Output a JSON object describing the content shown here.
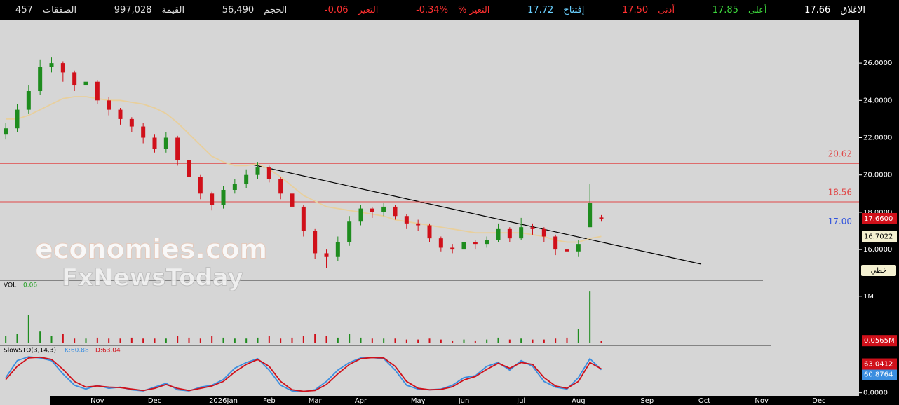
{
  "header": {
    "stats": [
      {
        "label": "الاغلاق",
        "value": "17.66"
      },
      {
        "label": "أعلى",
        "value": "17.85"
      },
      {
        "label": "أدنى",
        "value": "17.50"
      },
      {
        "label": "إفتتاح",
        "value": "17.72"
      },
      {
        "label": "التغير %",
        "value": "-0.34%"
      },
      {
        "label": "التغير",
        "value": "-0.06"
      },
      {
        "label": "الحجم",
        "value": "56,490"
      },
      {
        "label": "القيمة",
        "value": "997,028"
      },
      {
        "label": "الصفقات",
        "value": "457"
      }
    ]
  },
  "watermark": {
    "line1": "economies.com",
    "line2": "FxNewsToday"
  },
  "ui": {
    "mode_button": "خطي"
  },
  "chart_data": [
    {
      "type": "candlestick",
      "up_color": "#1e8c1e",
      "down_color": "#d0101a",
      "categories": [
        null,
        null,
        null,
        null,
        null,
        null,
        null,
        null,
        "Nov",
        null,
        null,
        null,
        null,
        "Dec",
        null,
        null,
        null,
        null,
        null,
        "2026Jan",
        null,
        null,
        null,
        "Feb",
        null,
        null,
        null,
        "Mar",
        null,
        null,
        null,
        "Apr",
        null,
        null,
        null,
        null,
        "May",
        null,
        null,
        null,
        "Jun",
        null,
        null,
        null,
        null,
        "Jul",
        null,
        null,
        null,
        null,
        "Aug",
        null,
        null,
        null,
        null,
        null,
        "Sep",
        null,
        null,
        null,
        null,
        "Oct",
        null,
        null,
        null,
        null,
        "Nov",
        null,
        null,
        null,
        null,
        "Dec",
        null,
        null,
        null
      ],
      "open": [
        22.2,
        22.5,
        23.5,
        24.5,
        25.8,
        26.0,
        25.5,
        24.8,
        25.0,
        24.0,
        23.5,
        23.0,
        22.6,
        22.0,
        21.4,
        22.0,
        20.8,
        19.9,
        19.0,
        18.4,
        19.2,
        19.5,
        20.0,
        20.4,
        19.8,
        19.0,
        18.3,
        17.0,
        15.8,
        15.6,
        16.4,
        17.5,
        18.2,
        18.0,
        18.3,
        17.8,
        17.4,
        17.3,
        16.6,
        16.1,
        16.0,
        16.4,
        16.3,
        16.5,
        17.1,
        16.6,
        17.2,
        17.1,
        16.7,
        16.0,
        15.9,
        17.2,
        17.72,
        null,
        null,
        null,
        null,
        null,
        null,
        null,
        null,
        null,
        null,
        null,
        null,
        null,
        null,
        null,
        null,
        null,
        null,
        null,
        null,
        null,
        null
      ],
      "high": [
        22.8,
        23.8,
        24.8,
        26.2,
        26.3,
        26.1,
        25.6,
        25.3,
        25.1,
        24.2,
        23.6,
        23.1,
        22.8,
        22.2,
        22.3,
        22.1,
        20.9,
        20.0,
        19.1,
        19.4,
        19.8,
        20.3,
        20.7,
        20.5,
        19.9,
        19.1,
        18.4,
        17.1,
        16.0,
        16.7,
        17.8,
        18.4,
        18.3,
        18.5,
        18.4,
        17.9,
        17.6,
        17.4,
        16.7,
        16.3,
        16.6,
        16.5,
        16.7,
        17.4,
        17.2,
        17.7,
        17.4,
        17.2,
        16.8,
        16.2,
        16.5,
        19.5,
        17.85,
        null,
        null,
        null,
        null,
        null,
        null,
        null,
        null,
        null,
        null,
        null,
        null,
        null,
        null,
        null,
        null,
        null,
        null,
        null,
        null,
        null,
        null
      ],
      "low": [
        21.9,
        22.3,
        23.3,
        24.3,
        25.5,
        25.0,
        24.5,
        24.6,
        23.8,
        23.2,
        22.7,
        22.3,
        21.7,
        21.2,
        21.2,
        20.5,
        19.6,
        18.7,
        18.1,
        18.2,
        19.0,
        19.3,
        19.8,
        19.6,
        18.7,
        18.0,
        16.7,
        15.5,
        15.0,
        15.4,
        16.2,
        17.3,
        17.7,
        17.8,
        17.6,
        17.1,
        17.0,
        16.4,
        15.9,
        15.8,
        15.8,
        16.0,
        16.1,
        16.4,
        16.4,
        16.5,
        16.8,
        16.4,
        15.7,
        15.3,
        15.6,
        17.2,
        17.5,
        null,
        null,
        null,
        null,
        null,
        null,
        null,
        null,
        null,
        null,
        null,
        null,
        null,
        null,
        null,
        null,
        null,
        null,
        null,
        null,
        null,
        null
      ],
      "close": [
        22.5,
        23.5,
        24.5,
        25.8,
        26.0,
        25.5,
        24.8,
        25.0,
        24.0,
        23.5,
        23.0,
        22.6,
        22.0,
        21.4,
        22.0,
        20.8,
        19.9,
        19.0,
        18.4,
        19.2,
        19.5,
        20.0,
        20.4,
        19.8,
        19.0,
        18.3,
        17.0,
        15.8,
        15.6,
        16.4,
        17.5,
        18.2,
        18.0,
        18.3,
        17.8,
        17.4,
        17.3,
        16.6,
        16.1,
        16.0,
        16.4,
        16.3,
        16.5,
        17.1,
        16.6,
        17.2,
        17.1,
        16.7,
        16.0,
        15.9,
        16.3,
        18.5,
        17.66,
        null,
        null,
        null,
        null,
        null,
        null,
        null,
        null,
        null,
        null,
        null,
        null,
        null,
        null,
        null,
        null,
        null,
        null,
        null,
        null,
        null,
        null
      ],
      "ma": {
        "color": "#e8cf9c",
        "values": [
          23.0,
          23.0,
          23.2,
          23.5,
          23.8,
          24.1,
          24.2,
          24.2,
          24.1,
          24.0,
          24.0,
          23.9,
          23.8,
          23.6,
          23.3,
          22.8,
          22.2,
          21.6,
          21.0,
          20.7,
          20.5,
          20.5,
          20.6,
          20.3,
          19.9,
          19.4,
          18.9,
          18.6,
          18.3,
          18.2,
          18.1,
          18.0,
          17.9,
          17.8,
          17.6,
          17.5,
          17.4,
          17.3,
          17.2,
          17.1,
          17.0,
          16.9,
          16.9,
          16.9,
          16.9,
          16.9,
          16.8,
          16.7,
          16.5,
          16.4,
          16.4,
          16.6,
          16.7022,
          null,
          null,
          null,
          null,
          null,
          null,
          null,
          null,
          null,
          null,
          null,
          null,
          null,
          null,
          null,
          null,
          null,
          null,
          null,
          null,
          null,
          null
        ]
      },
      "ylim": [
        14.35,
        28.26
      ],
      "yticks": [
        {
          "value": 16,
          "label": "16.0000"
        },
        {
          "value": 18,
          "label": "18.0000"
        },
        {
          "value": 20,
          "label": "20.0000"
        },
        {
          "value": 22,
          "label": "22.0000"
        },
        {
          "value": 24,
          "label": "24.0000"
        },
        {
          "value": 26,
          "label": "26.0000"
        }
      ],
      "levels": [
        {
          "value": 20.62,
          "label": "20.62",
          "color": "#e04848"
        },
        {
          "value": 18.56,
          "label": "18.56",
          "color": "#e04848"
        },
        {
          "value": 17,
          "label": "17.00",
          "color": "#3355dd"
        }
      ],
      "current": {
        "value": 17.66,
        "label": "17.6600",
        "color": "#d0101a"
      }
    },
    {
      "type": "bar",
      "title": "VOL",
      "subtitle": "0.06",
      "values": [
        0.15,
        0.2,
        0.6,
        0.25,
        0.15,
        0.2,
        0.1,
        0.1,
        0.12,
        0.1,
        0.1,
        0.12,
        0.1,
        0.1,
        0.1,
        0.15,
        0.12,
        0.1,
        0.15,
        0.12,
        0.1,
        0.1,
        0.12,
        0.15,
        0.1,
        0.12,
        0.15,
        0.2,
        0.15,
        0.12,
        0.2,
        0.12,
        0.1,
        0.1,
        0.1,
        0.08,
        0.08,
        0.1,
        0.08,
        0.06,
        0.08,
        0.06,
        0.08,
        0.12,
        0.08,
        0.1,
        0.08,
        0.08,
        0.1,
        0.12,
        0.3,
        1.1,
        0.0565,
        null,
        null,
        null,
        null,
        null,
        null,
        null,
        null,
        null,
        null,
        null,
        null,
        null,
        null,
        null,
        null,
        null,
        null,
        null,
        null,
        null,
        null
      ],
      "ylim": [
        -0.045,
        1.34
      ],
      "yticks": [
        {
          "value": 1,
          "label": "1M"
        }
      ],
      "current": {
        "value": 0.0565,
        "label": "0.0565M",
        "color": "#d0101a"
      }
    },
    {
      "type": "line",
      "title": "SlowSTO(3,14,3)",
      "series": [
        {
          "name": "K:60.88",
          "color": "#3a8ee0",
          "values": [
            40,
            85,
            95,
            92,
            85,
            50,
            20,
            10,
            20,
            12,
            15,
            8,
            5,
            15,
            25,
            8,
            5,
            15,
            20,
            35,
            65,
            80,
            90,
            60,
            20,
            5,
            3,
            8,
            30,
            60,
            80,
            92,
            93,
            90,
            60,
            20,
            10,
            8,
            10,
            20,
            40,
            45,
            70,
            80,
            60,
            85,
            70,
            30,
            15,
            10,
            40,
            90,
            60.8764,
            null,
            null,
            null,
            null,
            null,
            null,
            null,
            null,
            null,
            null,
            null,
            null,
            null,
            null,
            null,
            null,
            null,
            null,
            null,
            null,
            null,
            null
          ]
        },
        {
          "name": "D:63.04",
          "color": "#d0101a",
          "values": [
            35,
            70,
            92,
            94,
            88,
            62,
            30,
            15,
            18,
            15,
            14,
            10,
            6,
            12,
            22,
            12,
            6,
            12,
            18,
            30,
            55,
            75,
            88,
            70,
            30,
            8,
            4,
            6,
            22,
            50,
            75,
            90,
            93,
            92,
            70,
            30,
            12,
            8,
            9,
            16,
            34,
            43,
            62,
            78,
            65,
            80,
            75,
            40,
            18,
            12,
            30,
            80,
            63.0412,
            null,
            null,
            null,
            null,
            null,
            null,
            null,
            null,
            null,
            null,
            null,
            null,
            null,
            null,
            null,
            null,
            null,
            null,
            null,
            null,
            null,
            null
          ]
        }
      ],
      "ylim": [
        -8,
        125
      ],
      "yticks": [
        {
          "value": 0,
          "label": "0.0000"
        }
      ]
    }
  ]
}
